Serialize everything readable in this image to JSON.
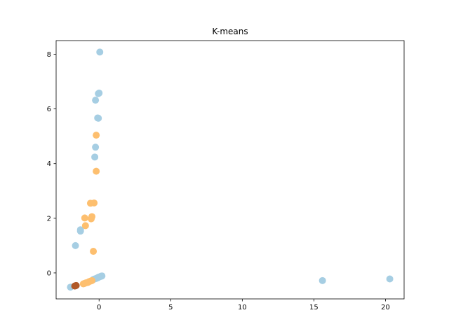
{
  "chart_data": {
    "type": "scatter",
    "title": "K-means",
    "xlabel": "",
    "ylabel": "",
    "xlim": [
      -3.0,
      21.3
    ],
    "ylim": [
      -0.95,
      8.5
    ],
    "xticks": [
      0,
      5,
      10,
      15,
      20
    ],
    "yticks": [
      0,
      2,
      4,
      6,
      8
    ],
    "grid": false,
    "legend": "none",
    "series": [
      {
        "color": "#a6cee3",
        "points": [
          [
            0.05,
            8.08
          ],
          [
            0.0,
            6.58
          ],
          [
            -0.05,
            6.56
          ],
          [
            -0.25,
            6.32
          ],
          [
            -0.1,
            5.67
          ],
          [
            -0.05,
            5.66
          ],
          [
            -0.25,
            4.6
          ],
          [
            -0.3,
            4.24
          ],
          [
            -1.3,
            1.58
          ],
          [
            -1.3,
            1.53
          ],
          [
            -1.65,
            1.0
          ],
          [
            15.6,
            -0.28
          ],
          [
            20.3,
            -0.22
          ],
          [
            -2.0,
            -0.52
          ],
          [
            -0.1,
            -0.18
          ],
          [
            0.0,
            -0.15
          ],
          [
            0.1,
            -0.13
          ],
          [
            0.15,
            -0.12
          ],
          [
            0.2,
            -0.11
          ],
          [
            -0.2,
            -0.2
          ],
          [
            -0.3,
            -0.22
          ],
          [
            -0.4,
            -0.24
          ],
          [
            -0.05,
            -0.16
          ]
        ]
      },
      {
        "color": "#fdbf6f",
        "points": [
          [
            -0.2,
            5.04
          ],
          [
            -0.2,
            3.72
          ],
          [
            -0.6,
            2.55
          ],
          [
            -0.35,
            2.56
          ],
          [
            -1.0,
            2.01
          ],
          [
            -0.5,
            2.06
          ],
          [
            -0.55,
            1.98
          ],
          [
            -0.95,
            1.73
          ],
          [
            -0.4,
            0.79
          ],
          [
            -1.0,
            -0.38
          ],
          [
            -0.8,
            -0.35
          ],
          [
            -0.6,
            -0.3
          ],
          [
            -0.7,
            -0.32
          ],
          [
            -0.9,
            -0.36
          ],
          [
            -0.5,
            -0.28
          ],
          [
            -1.1,
            -0.4
          ]
        ]
      },
      {
        "color": "#b15928",
        "points": [
          [
            -1.65,
            -0.47
          ],
          [
            -1.7,
            -0.48
          ],
          [
            -1.6,
            -0.46
          ]
        ]
      }
    ]
  }
}
